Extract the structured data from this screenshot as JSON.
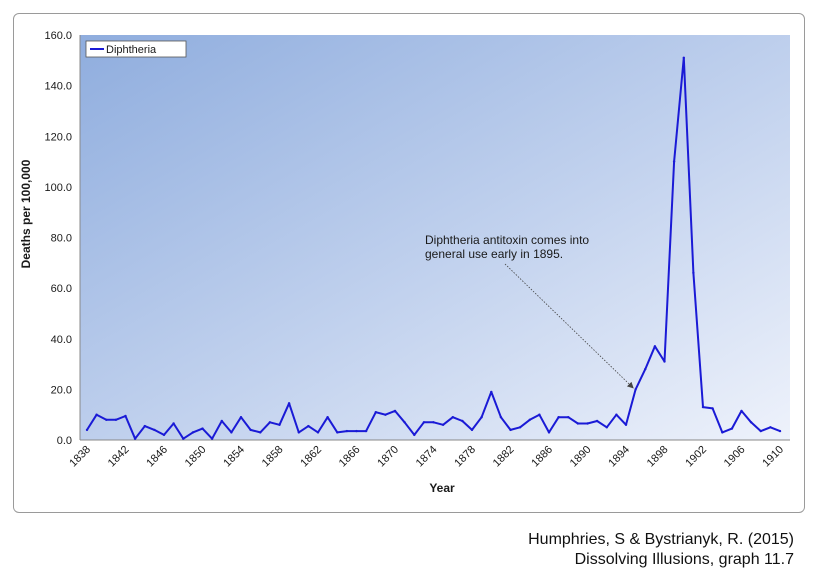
{
  "chart_data": {
    "type": "line",
    "ylabel": "Deaths per 100,000",
    "xlabel": "Year",
    "ylim": [
      0,
      160
    ],
    "xlim": [
      1838,
      1910
    ],
    "y_ticks": [
      "0.0",
      "20.0",
      "40.0",
      "60.0",
      "80.0",
      "100.0",
      "120.0",
      "140.0",
      "160.0"
    ],
    "x_ticks": [
      "1838",
      "1842",
      "1846",
      "1850",
      "1854",
      "1858",
      "1862",
      "1866",
      "1870",
      "1874",
      "1878",
      "1882",
      "1886",
      "1890",
      "1894",
      "1898",
      "1902",
      "1906",
      "1910"
    ],
    "legend_position": "top-left",
    "grid": false,
    "series": [
      {
        "name": "Diphtheria",
        "color": "#1a1ad6",
        "x": [
          1838,
          1839,
          1840,
          1841,
          1842,
          1843,
          1844,
          1845,
          1846,
          1847,
          1848,
          1849,
          1850,
          1851,
          1852,
          1853,
          1854,
          1855,
          1856,
          1857,
          1858,
          1859,
          1860,
          1861,
          1862,
          1863,
          1864,
          1865,
          1866,
          1867,
          1868,
          1869,
          1870,
          1871,
          1872,
          1873,
          1874,
          1875,
          1876,
          1877,
          1878,
          1879,
          1880,
          1881,
          1882,
          1883,
          1884,
          1885,
          1886,
          1887,
          1888,
          1889,
          1890,
          1891,
          1892,
          1893,
          1894,
          1895,
          1896,
          1897,
          1898,
          1899,
          1900,
          1901,
          1902,
          1903,
          1904,
          1905,
          1906,
          1907,
          1908,
          1909,
          1910
        ],
        "y": [
          4,
          10,
          8,
          8,
          9.5,
          0.5,
          5.5,
          4,
          2,
          6.5,
          0.5,
          3,
          4.5,
          0.5,
          7.5,
          3,
          9,
          4,
          3,
          7,
          6,
          14.5,
          3,
          5.5,
          3,
          9,
          3,
          3.5,
          3.5,
          3.5,
          11,
          10,
          11.5,
          7,
          2,
          7,
          7,
          6,
          9,
          7.5,
          4,
          9,
          19,
          9,
          4,
          5,
          8,
          10,
          3,
          9,
          9,
          6.5,
          6.5,
          7.5,
          5,
          10,
          6,
          20,
          28,
          37,
          31,
          110,
          151,
          66,
          13,
          12.5,
          3,
          4.5,
          11.5,
          7,
          3.5,
          5,
          3.5
        ]
      }
    ],
    "annotation": {
      "lines": [
        "Diphtheria antitoxin comes into",
        "general use early in 1895."
      ],
      "points_to": {
        "x": 1895,
        "y": 20
      }
    }
  },
  "citation": {
    "line1": "Humphries, S & Bystrianyk, R. (2015)",
    "line2": "Dissolving Illusions, graph 11.7"
  }
}
